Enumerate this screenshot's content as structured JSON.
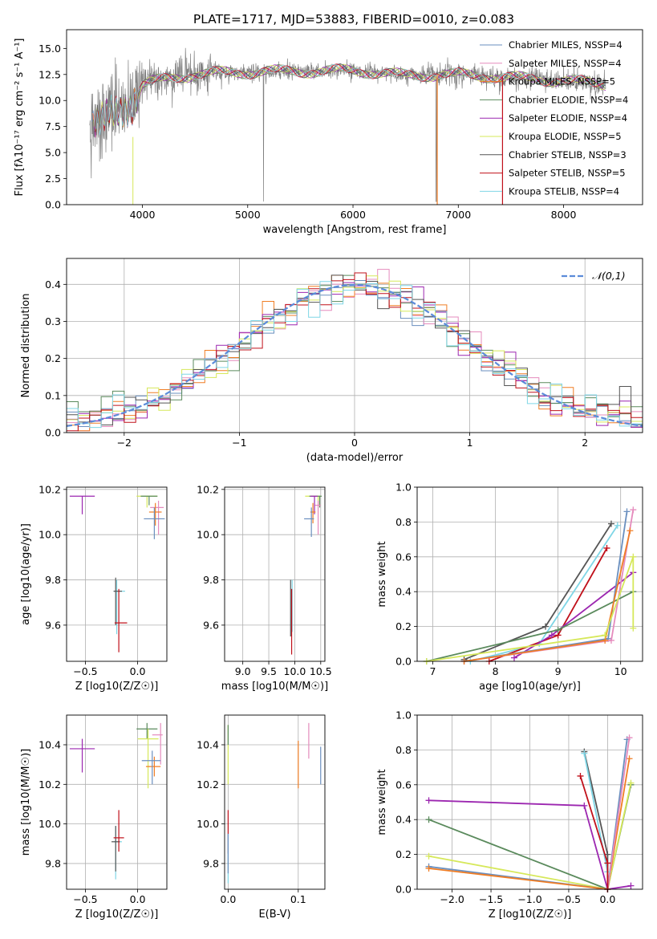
{
  "chart_data": [
    {
      "id": "spectrum",
      "type": "line",
      "title": "PLATE=1717, MJD=53883, FIBERID=0010, z=0.083",
      "xlabel": "wavelength [Angstrom, rest frame]",
      "ylabel": "Flux [fλ10⁻¹⁷ erg cm⁻² s⁻¹ A⁻¹]",
      "xlim": [
        3280,
        8750
      ],
      "ylim": [
        0,
        16.8
      ],
      "xticks": [
        4000,
        5000,
        6000,
        7000,
        8000
      ],
      "yticks": [
        0.0,
        2.5,
        5.0,
        7.5,
        10.0,
        12.5,
        15.0
      ],
      "grid": false,
      "legend_position": "top-right",
      "series": [
        {
          "name": "Chabrier MILES, NSSP=4",
          "color": "#6a8fbf"
        },
        {
          "name": "Salpeter MILES, NSSP=4",
          "color": "#e58bbd"
        },
        {
          "name": "Kroupa MILES, NSSP=5",
          "color": "#f07d24"
        },
        {
          "name": "Chabrier ELODIE, NSSP=4",
          "color": "#5a8a5c"
        },
        {
          "name": "Salpeter ELODIE, NSSP=4",
          "color": "#9c27b0"
        },
        {
          "name": "Kroupa ELODIE, NSSP=5",
          "color": "#d6e85a"
        },
        {
          "name": "Chabrier STELIB, NSSP=3",
          "color": "#555555"
        },
        {
          "name": "Salpeter STELIB, NSSP=5",
          "color": "#c0101a"
        },
        {
          "name": "Kroupa STELIB, NSSP=4",
          "color": "#7fd6e6"
        }
      ],
      "data_color": "#808080",
      "profile": {
        "x": [
          3500,
          3700,
          3900,
          4000,
          4100,
          4300,
          4500,
          4800,
          5000,
          5200,
          5600,
          6000,
          6500,
          7000,
          7500,
          8000,
          8400
        ],
        "y": [
          7.0,
          9.0,
          9.3,
          11.5,
          11.8,
          12.2,
          12.5,
          12.7,
          12.7,
          12.8,
          12.8,
          12.9,
          12.4,
          12.5,
          12.2,
          11.9,
          11.6
        ]
      }
    },
    {
      "id": "residuals",
      "type": "histogram",
      "xlabel": "(data-model)/error",
      "ylabel": "Normed distribution",
      "xlim": [
        -2.5,
        2.5
      ],
      "ylim": [
        0,
        0.47
      ],
      "xticks": [
        -2,
        -1,
        0,
        1,
        2
      ],
      "yticks": [
        0.0,
        0.1,
        0.2,
        0.3,
        0.4
      ],
      "grid": true,
      "legend": "𝒩(0,1)",
      "reference_curve": {
        "type": "gaussian",
        "mean": 0,
        "sigma": 1,
        "color": "#5b8bd9"
      },
      "bin_width": 0.1,
      "bin_range": [
        -2.5,
        2.5
      ]
    },
    {
      "id": "age-vs-Z",
      "type": "scatter",
      "xlabel": "Z [log10(Z/Z☉)]",
      "ylabel": "age  [log10(age/yr)]",
      "xlim": [
        -0.68,
        0.28
      ],
      "ylim": [
        9.44,
        10.21
      ],
      "xticks": [
        -0.5,
        0.0
      ],
      "yticks": [
        9.6,
        9.8,
        10.0,
        10.2
      ],
      "grid": true,
      "points": [
        {
          "x": -0.53,
          "y": 10.17,
          "xerr": [
            0.12,
            0.12
          ],
          "yerr": [
            0.08,
            0.0
          ],
          "color": "#9c27b0"
        },
        {
          "x": 0.09,
          "y": 10.17,
          "xerr": [
            0.1,
            0.1
          ],
          "yerr": [
            0.05,
            0.0
          ],
          "color": "#d6e85a"
        },
        {
          "x": 0.11,
          "y": 10.17,
          "xerr": [
            0.08,
            0.08
          ],
          "yerr": [
            0.04,
            0.0
          ],
          "color": "#5a8a5c"
        },
        {
          "x": 0.2,
          "y": 10.12,
          "xerr": [
            0.08,
            0.05
          ],
          "yerr": [
            0.12,
            0.03
          ],
          "color": "#e58bbd"
        },
        {
          "x": 0.17,
          "y": 10.1,
          "xerr": [
            0.06,
            0.06
          ],
          "yerr": [
            0.06,
            0.04
          ],
          "color": "#f07d24"
        },
        {
          "x": 0.16,
          "y": 10.07,
          "xerr": [
            0.1,
            0.1
          ],
          "yerr": [
            0.09,
            0.05
          ],
          "color": "#6a8fbf"
        },
        {
          "x": -0.2,
          "y": 9.75,
          "xerr": [
            0.03,
            0.08
          ],
          "yerr": [
            0.19,
            0.05
          ],
          "color": "#7fd6e6"
        },
        {
          "x": -0.21,
          "y": 9.75,
          "xerr": [
            0.02,
            0.06
          ],
          "yerr": [
            0.15,
            0.06
          ],
          "color": "#555555"
        },
        {
          "x": -0.18,
          "y": 9.61,
          "xerr": [
            0.04,
            0.08
          ],
          "yerr": [
            0.13,
            0.15
          ],
          "color": "#c0101a"
        }
      ]
    },
    {
      "id": "age-vs-mass",
      "type": "scatter",
      "xlabel": "mass [log10(M/M☉)]",
      "ylabel": "",
      "xlim": [
        8.65,
        10.58
      ],
      "ylim": [
        9.44,
        10.21
      ],
      "xticks": [
        9.0,
        9.5,
        10.0,
        10.5
      ],
      "yticks": [
        9.6,
        9.8,
        10.0,
        10.2
      ],
      "grid": true,
      "points": [
        {
          "x": 10.45,
          "y": 10.17,
          "xerr": [
            0.25,
            0.05
          ],
          "yerr": [
            0.04,
            0.0
          ],
          "color": "#d6e85a"
        },
        {
          "x": 10.48,
          "y": 10.17,
          "xerr": [
            0.2,
            0.04
          ],
          "yerr": [
            0.05,
            0.0
          ],
          "color": "#5a8a5c"
        },
        {
          "x": 10.38,
          "y": 10.17,
          "xerr": [
            0.08,
            0.06
          ],
          "yerr": [
            0.08,
            0.0
          ],
          "color": "#9c27b0"
        },
        {
          "x": 10.45,
          "y": 10.13,
          "xerr": [
            0.06,
            0.05
          ],
          "yerr": [
            0.13,
            0.02
          ],
          "color": "#e58bbd"
        },
        {
          "x": 10.35,
          "y": 10.1,
          "xerr": [
            0.05,
            0.05
          ],
          "yerr": [
            0.05,
            0.04
          ],
          "color": "#f07d24"
        },
        {
          "x": 10.32,
          "y": 10.07,
          "xerr": [
            0.14,
            0.05
          ],
          "yerr": [
            0.08,
            0.05
          ],
          "color": "#6a8fbf"
        },
        {
          "x": 9.95,
          "y": 9.75,
          "xerr": [
            0.0,
            0.0
          ],
          "yerr": [
            0.18,
            0.05
          ],
          "color": "#7fd6e6"
        },
        {
          "x": 9.92,
          "y": 9.75,
          "xerr": [
            0.0,
            0.0
          ],
          "yerr": [
            0.2,
            0.05
          ],
          "color": "#555555"
        },
        {
          "x": 9.94,
          "y": 9.61,
          "xerr": [
            0.0,
            0.0
          ],
          "yerr": [
            0.14,
            0.15
          ],
          "color": "#c0101a"
        }
      ]
    },
    {
      "id": "weight-vs-age",
      "type": "line",
      "xlabel": "age  [log10(age/yr)]",
      "ylabel": "mass weight",
      "xlim": [
        6.75,
        10.35
      ],
      "ylim": [
        0,
        1.0
      ],
      "xticks": [
        7,
        8,
        9,
        10
      ],
      "yticks": [
        0.0,
        0.2,
        0.4,
        0.6,
        0.8,
        1.0
      ],
      "grid": true,
      "series": [
        {
          "color": "#555555",
          "x": [
            7.5,
            8.8,
            9.85
          ],
          "y": [
            0.01,
            0.2,
            0.79
          ]
        },
        {
          "color": "#7fd6e6",
          "x": [
            7.6,
            8.7,
            9.95
          ],
          "y": [
            0.0,
            0.1,
            0.78
          ]
        },
        {
          "color": "#c0101a",
          "x": [
            7.9,
            9.0,
            9.78
          ],
          "y": [
            0.0,
            0.15,
            0.65
          ]
        },
        {
          "color": "#9c27b0",
          "x": [
            8.3,
            8.9,
            10.2
          ],
          "y": [
            0.02,
            0.15,
            0.51
          ]
        },
        {
          "color": "#5a8a5c",
          "x": [
            6.9,
            9.0,
            10.2
          ],
          "y": [
            0.0,
            0.18,
            0.4
          ]
        },
        {
          "color": "#6a8fbf",
          "x": [
            7.5,
            9.8,
            10.1
          ],
          "y": [
            0.0,
            0.13,
            0.86
          ]
        },
        {
          "color": "#e58bbd",
          "x": [
            7.5,
            9.85,
            10.2
          ],
          "y": [
            0.0,
            0.12,
            0.87
          ]
        },
        {
          "color": "#f07d24",
          "x": [
            7.5,
            9.75,
            10.15
          ],
          "y": [
            0.0,
            0.12,
            0.75
          ]
        },
        {
          "color": "#d6e85a",
          "x": [
            6.9,
            9.75,
            10.2,
            10.2
          ],
          "y": [
            0.0,
            0.15,
            0.6,
            0.19
          ]
        }
      ]
    },
    {
      "id": "mass-vs-Z",
      "type": "scatter",
      "xlabel": "Z [log10(Z/Z☉)]",
      "ylabel": "mass [log10(M/M☉)]",
      "xlim": [
        -0.68,
        0.28
      ],
      "ylim": [
        9.67,
        10.55
      ],
      "xticks": [
        -0.5,
        0.0
      ],
      "yticks": [
        9.8,
        10.0,
        10.2,
        10.4
      ],
      "grid": true,
      "points": [
        {
          "x": -0.53,
          "y": 10.38,
          "xerr": [
            0.12,
            0.12
          ],
          "yerr": [
            0.12,
            0.05
          ],
          "color": "#9c27b0"
        },
        {
          "x": 0.09,
          "y": 10.48,
          "xerr": [
            0.1,
            0.1
          ],
          "yerr": [
            0.05,
            0.03
          ],
          "color": "#5a8a5c"
        },
        {
          "x": 0.1,
          "y": 10.43,
          "xerr": [
            0.1,
            0.1
          ],
          "yerr": [
            0.25,
            0.05
          ],
          "color": "#d6e85a"
        },
        {
          "x": 0.22,
          "y": 10.45,
          "xerr": [
            0.08,
            0.02
          ],
          "yerr": [
            0.15,
            0.06
          ],
          "color": "#e58bbd"
        },
        {
          "x": 0.16,
          "y": 10.29,
          "xerr": [
            0.08,
            0.06
          ],
          "yerr": [
            0.05,
            0.05
          ],
          "color": "#f07d24"
        },
        {
          "x": 0.14,
          "y": 10.32,
          "xerr": [
            0.1,
            0.08
          ],
          "yerr": [
            0.12,
            0.05
          ],
          "color": "#6a8fbf"
        },
        {
          "x": -0.21,
          "y": 9.91,
          "xerr": [
            0.02,
            0.06
          ],
          "yerr": [
            0.19,
            0.08
          ],
          "color": "#7fd6e6"
        },
        {
          "x": -0.21,
          "y": 9.91,
          "xerr": [
            0.04,
            0.04
          ],
          "yerr": [
            0.15,
            0.08
          ],
          "color": "#555555"
        },
        {
          "x": -0.18,
          "y": 9.93,
          "xerr": [
            0.05,
            0.05
          ],
          "yerr": [
            0.07,
            0.14
          ],
          "color": "#c0101a"
        }
      ]
    },
    {
      "id": "mass-vs-ebv",
      "type": "scatter",
      "xlabel": "E(B-V)",
      "ylabel": "",
      "xlim": [
        -0.005,
        0.138
      ],
      "ylim": [
        9.67,
        10.55
      ],
      "xticks": [
        0.0,
        0.1
      ],
      "yticks": [
        9.8,
        10.0,
        10.2,
        10.4
      ],
      "grid": true,
      "points": [
        {
          "x": 0.0,
          "y": 10.4,
          "xerr": [
            0.0,
            0.0
          ],
          "yerr": [
            0.2,
            0.1
          ],
          "color": "#d6e85a"
        },
        {
          "x": 0.0,
          "y": 10.45,
          "xerr": [
            0.0,
            0.0
          ],
          "yerr": [
            0.05,
            0.05
          ],
          "color": "#5a8a5c"
        },
        {
          "x": 0.0,
          "y": 9.93,
          "xerr": [
            0.0,
            0.0
          ],
          "yerr": [
            0.08,
            0.14
          ],
          "color": "#c0101a"
        },
        {
          "x": 0.0,
          "y": 9.8,
          "xerr": [
            0.0,
            0.0
          ],
          "yerr": [
            0.1,
            0.15
          ],
          "color": "#7fd6e6"
        },
        {
          "x": 0.0,
          "y": 9.9,
          "xerr": [
            0.0,
            0.0
          ],
          "yerr": [
            0.15,
            0.05
          ],
          "color": "#6a8fbf"
        },
        {
          "x": 0.1,
          "y": 10.28,
          "xerr": [
            0.0,
            0.0
          ],
          "yerr": [
            0.1,
            0.14
          ],
          "color": "#f07d24"
        },
        {
          "x": 0.115,
          "y": 10.42,
          "xerr": [
            0.0,
            0.0
          ],
          "yerr": [
            0.09,
            0.09
          ],
          "color": "#e58bbd"
        },
        {
          "x": 0.132,
          "y": 10.3,
          "xerr": [
            0.0,
            0.0
          ],
          "yerr": [
            0.1,
            0.09
          ],
          "color": "#6a8fbf"
        }
      ]
    },
    {
      "id": "weight-vs-Z",
      "type": "line",
      "xlabel": "Z [log10(Z/Z☉)]",
      "ylabel": "mass weight",
      "xlim": [
        -2.45,
        0.45
      ],
      "ylim": [
        0,
        1.0
      ],
      "xticks": [
        -2.0,
        -1.5,
        -1.0,
        -0.5,
        0.0
      ],
      "yticks": [
        0.0,
        0.2,
        0.4,
        0.6,
        0.8,
        1.0
      ],
      "grid": true,
      "series": [
        {
          "color": "#9c27b0",
          "x": [
            -2.3,
            -0.3,
            0.0,
            0.3
          ],
          "y": [
            0.51,
            0.48,
            0.0,
            0.02
          ]
        },
        {
          "color": "#5a8a5c",
          "x": [
            -2.3,
            0.0,
            0.3
          ],
          "y": [
            0.4,
            0.0,
            0.6
          ]
        },
        {
          "color": "#d6e85a",
          "x": [
            -2.3,
            0.0,
            0.3
          ],
          "y": [
            0.19,
            0.0,
            0.61
          ]
        },
        {
          "color": "#6a8fbf",
          "x": [
            -2.3,
            0.0,
            0.25
          ],
          "y": [
            0.13,
            0.0,
            0.86
          ]
        },
        {
          "color": "#f07d24",
          "x": [
            -2.3,
            0.0,
            0.28
          ],
          "y": [
            0.12,
            0.0,
            0.75
          ]
        },
        {
          "color": "#e58bbd",
          "x": [
            0.0,
            0.28
          ],
          "y": [
            0.0,
            0.87
          ]
        },
        {
          "color": "#555555",
          "x": [
            -0.3,
            0.0,
            0.0
          ],
          "y": [
            0.79,
            0.2,
            0.0
          ]
        },
        {
          "color": "#7fd6e6",
          "x": [
            -0.3,
            0.0
          ],
          "y": [
            0.78,
            0.1
          ]
        },
        {
          "color": "#c0101a",
          "x": [
            -0.35,
            0.0,
            0.0
          ],
          "y": [
            0.65,
            0.15,
            0.0
          ]
        }
      ]
    }
  ]
}
